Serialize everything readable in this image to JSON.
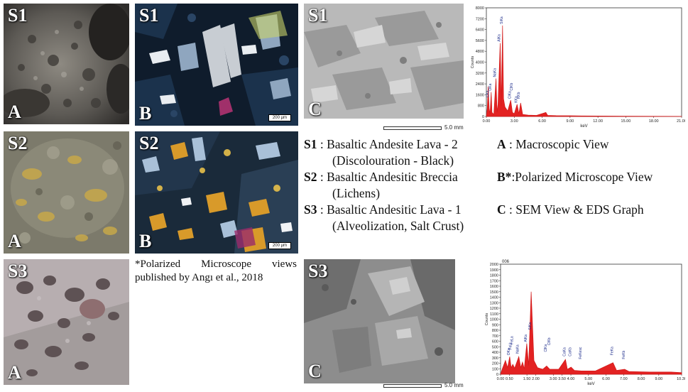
{
  "panels": {
    "s1a": {
      "sample": "S1",
      "view": "A"
    },
    "s1b": {
      "sample": "S1",
      "view": "B",
      "scale": "200 µm"
    },
    "s1c": {
      "sample": "S1",
      "view": "C",
      "scale": "5.0 mm"
    },
    "s2a": {
      "sample": "S2",
      "view": "A"
    },
    "s2b": {
      "sample": "S2",
      "view": "B",
      "scale": "200 µm"
    },
    "s3a": {
      "sample": "S3",
      "view": "A"
    },
    "s3c": {
      "sample": "S3",
      "view": "C",
      "scale": "5.0 mm"
    }
  },
  "legend": {
    "s1_key": "S1",
    "s1_text": ": Basaltic Andesite Lava - 2",
    "s1_sub": "(Discolouration - Black)",
    "s2_key": "S2",
    "s2_text": ": Basaltic Andesitic Breccia",
    "s2_sub": "(Lichens)",
    "s3_key": "S3",
    "s3_text": ": Basaltic Andesitic Lava - 1",
    "s3_sub": "(Alveolization, Salt Crust)",
    "a_key": "A",
    "a_text": ": Macroscopic View",
    "b_key": "B*",
    "b_text": ":Polarized Microscope View",
    "c_key": "C",
    "c_text": ": SEM View & EDS Graph"
  },
  "note": "*Polarized Microscope views published by Angı et al., 2018",
  "chart_data": [
    {
      "type": "line",
      "id": "eds-s1",
      "xlabel": "keV",
      "ylabel": "Counts",
      "xlim": [
        0,
        21.0
      ],
      "ylim": [
        0,
        8000
      ],
      "x_ticks": [
        "0.00",
        "3.00",
        "6.00",
        "9.00",
        "12.00",
        "15.00",
        "18.00",
        "21.00"
      ],
      "y_ticks": [
        "0",
        "800",
        "1600",
        "2400",
        "3200",
        "4000",
        "4800",
        "5600",
        "6400",
        "7200",
        "8000"
      ],
      "series": [
        {
          "values": [
            [
              0.0,
              0
            ],
            [
              0.1,
              600
            ],
            [
              0.2,
              2200
            ],
            [
              0.3,
              600
            ],
            [
              0.4,
              200
            ],
            [
              0.52,
              1800
            ],
            [
              0.6,
              300
            ],
            [
              0.8,
              150
            ],
            [
              1.04,
              2800
            ],
            [
              1.15,
              300
            ],
            [
              1.25,
              900
            ],
            [
              1.49,
              5400
            ],
            [
              1.6,
              800
            ],
            [
              1.74,
              6700
            ],
            [
              1.85,
              1300
            ],
            [
              2.0,
              700
            ],
            [
              2.3,
              400
            ],
            [
              2.62,
              1200
            ],
            [
              2.8,
              300
            ],
            [
              3.0,
              200
            ],
            [
              3.31,
              900
            ],
            [
              3.5,
              200
            ],
            [
              3.69,
              1000
            ],
            [
              3.9,
              150
            ],
            [
              4.5,
              100
            ],
            [
              5.4,
              80
            ],
            [
              6.4,
              300
            ],
            [
              6.6,
              80
            ],
            [
              7.5,
              60
            ],
            [
              9.0,
              50
            ],
            [
              10.2,
              40
            ],
            [
              12.0,
              30
            ],
            [
              15.0,
              20
            ],
            [
              18.0,
              15
            ],
            [
              21.0,
              10
            ]
          ]
        }
      ],
      "peaks": [
        {
          "label": "OKa",
          "x": 0.52,
          "y": 1800
        },
        {
          "label": "NaKa",
          "x": 1.04,
          "y": 2800
        },
        {
          "label": "AlKa",
          "x": 1.49,
          "y": 5400
        },
        {
          "label": "SiKa",
          "x": 1.74,
          "y": 6700
        },
        {
          "label": "ClKa",
          "x": 2.62,
          "y": 1200
        },
        {
          "label": "ClKb",
          "x": 2.82,
          "y": 1800
        },
        {
          "label": "KKa",
          "x": 3.31,
          "y": 900
        },
        {
          "label": "KKb",
          "x": 3.59,
          "y": 1200
        },
        {
          "label": "CKa",
          "x": 0.28,
          "y": 1300
        }
      ]
    },
    {
      "type": "line",
      "id": "eds-s3",
      "header": "006",
      "xlabel": "keV",
      "ylabel": "Counts",
      "xlim": [
        0,
        10.3
      ],
      "ylim": [
        0,
        2000
      ],
      "x_ticks": [
        "0.00",
        "0.50",
        "1.50",
        "2.00",
        "3.00",
        "3.50",
        "4.00",
        "5.00",
        "6.00",
        "7.00",
        "8.00",
        "9.00",
        "10.30"
      ],
      "y_ticks": [
        "0",
        "100",
        "200",
        "300",
        "400",
        "500",
        "600",
        "700",
        "800",
        "900",
        "1000",
        "1100",
        "1200",
        "1300",
        "1400",
        "1500",
        "1600",
        "1700",
        "1800",
        "1900",
        "2000"
      ],
      "series": [
        {
          "values": [
            [
              0.0,
              0
            ],
            [
              0.1,
              100
            ],
            [
              0.28,
              250
            ],
            [
              0.4,
              120
            ],
            [
              0.52,
              320
            ],
            [
              0.6,
              120
            ],
            [
              0.7,
              180
            ],
            [
              0.8,
              110
            ],
            [
              1.04,
              320
            ],
            [
              1.15,
              120
            ],
            [
              1.25,
              220
            ],
            [
              1.35,
              100
            ],
            [
              1.49,
              560
            ],
            [
              1.6,
              160
            ],
            [
              1.74,
              1500
            ],
            [
              1.9,
              250
            ],
            [
              2.1,
              120
            ],
            [
              2.4,
              90
            ],
            [
              2.62,
              150
            ],
            [
              2.8,
              90
            ],
            [
              3.31,
              90
            ],
            [
              3.69,
              270
            ],
            [
              3.8,
              90
            ],
            [
              4.01,
              130
            ],
            [
              4.2,
              70
            ],
            [
              4.6,
              60
            ],
            [
              5.4,
              60
            ],
            [
              6.4,
              210
            ],
            [
              6.6,
              70
            ],
            [
              7.06,
              90
            ],
            [
              7.3,
              50
            ],
            [
              8.5,
              40
            ],
            [
              9.7,
              40
            ],
            [
              10.3,
              30
            ]
          ]
        }
      ],
      "peaks": [
        {
          "label": "OKa",
          "x": 0.52,
          "y": 320
        },
        {
          "label": "FeLl",
          "x": 0.62,
          "y": 420
        },
        {
          "label": "FeLa",
          "x": 0.71,
          "y": 520
        },
        {
          "label": "NaKa",
          "x": 1.04,
          "y": 350
        },
        {
          "label": "AlKa",
          "x": 1.49,
          "y": 560
        },
        {
          "label": "SiKa",
          "x": 1.74,
          "y": 780
        },
        {
          "label": "ClKa",
          "x": 2.62,
          "y": 380
        },
        {
          "label": "ClKb",
          "x": 2.82,
          "y": 500
        },
        {
          "label": "CaKa",
          "x": 3.69,
          "y": 300
        },
        {
          "label": "CaKb",
          "x": 4.01,
          "y": 300
        },
        {
          "label": "FeKesc",
          "x": 4.6,
          "y": 250
        },
        {
          "label": "FeKa",
          "x": 6.4,
          "y": 320
        },
        {
          "label": "FeKb",
          "x": 7.06,
          "y": 250
        }
      ]
    }
  ]
}
